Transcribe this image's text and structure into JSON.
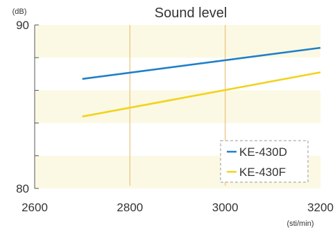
{
  "chart_data": {
    "type": "line",
    "title": "Sound level",
    "ylabel": "(dB)",
    "xlabel": "(sti/min)",
    "xlim": [
      2600,
      3200
    ],
    "ylim": [
      80,
      90
    ],
    "x_ticks": [
      "2600",
      "2800",
      "3000",
      "3200"
    ],
    "y_ticks": [
      "90",
      "80"
    ],
    "y_tick_values": [
      90,
      80
    ],
    "x_tick_values": [
      2600,
      2800,
      3000,
      3200
    ],
    "reference_lines_x": [
      2800,
      3000
    ],
    "grid": "alternating horizontal bands",
    "legend_position": "bottom-right",
    "series": [
      {
        "name": "KE-430D",
        "color": "#1f7fc8",
        "x": [
          2700,
          3200
        ],
        "y": [
          86.7,
          88.6
        ]
      },
      {
        "name": "KE-430F",
        "color": "#f2d21c",
        "x": [
          2700,
          3200
        ],
        "y": [
          84.4,
          87.1
        ]
      }
    ],
    "colors": {
      "band": "#fbf9e3",
      "refline": "#edc684",
      "axis": "#555555",
      "legend_border": "#9a9a9a"
    }
  }
}
